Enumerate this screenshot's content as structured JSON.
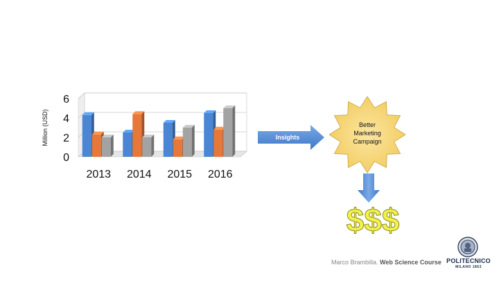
{
  "chart_data": {
    "type": "bar",
    "categories": [
      "2013",
      "2014",
      "2015",
      "2016"
    ],
    "series": [
      {
        "values": [
          4.3,
          2.5,
          3.5,
          4.5
        ]
      },
      {
        "values": [
          2.3,
          4.4,
          1.8,
          2.8
        ]
      },
      {
        "values": [
          2.0,
          2.0,
          3.0,
          5.0
        ]
      }
    ],
    "ylabel": "Million (USD)",
    "yticks": [
      0,
      2,
      4,
      6
    ],
    "ylim": [
      0,
      6
    ],
    "grid": true,
    "colors": [
      "#4a86d4",
      "#e8773a",
      "#a3a3a3"
    ]
  },
  "flow": {
    "arrow_label": "Insights",
    "outcome_lines": [
      "Better",
      "Marketing",
      "Campaign"
    ],
    "result": "$$$"
  },
  "footer": {
    "author": "Marco Brambilla.",
    "course": "Web Science Course"
  },
  "logo": {
    "name": "POLITECNICO",
    "sub": "MILANO 1863"
  },
  "colors": {
    "arrow": "#5b8fd6",
    "star": "#f7d675",
    "dollar": "#f2f24a"
  }
}
